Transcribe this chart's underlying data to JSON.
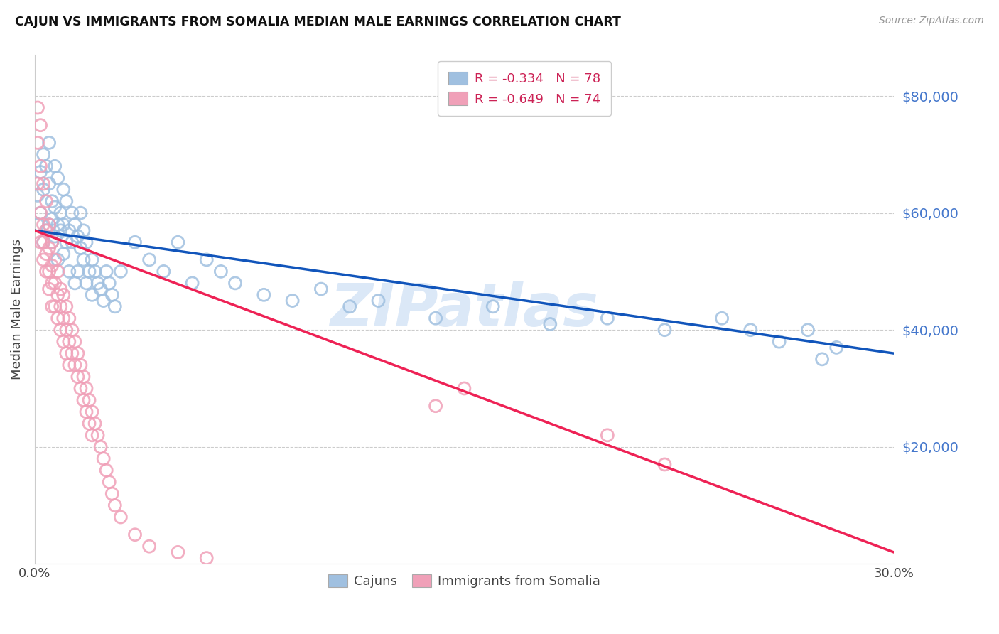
{
  "title": "CAJUN VS IMMIGRANTS FROM SOMALIA MEDIAN MALE EARNINGS CORRELATION CHART",
  "source": "Source: ZipAtlas.com",
  "ylabel": "Median Male Earnings",
  "ytick_labels": [
    "$20,000",
    "$40,000",
    "$60,000",
    "$80,000"
  ],
  "ytick_values": [
    20000,
    40000,
    60000,
    80000
  ],
  "ymin": 0,
  "ymax": 87000,
  "xmin": 0.0,
  "xmax": 0.3,
  "cajun_color": "#a0c0e0",
  "somalia_color": "#f0a0b8",
  "cajun_line_color": "#1155bb",
  "somalia_line_color": "#ee2255",
  "right_axis_color": "#4477cc",
  "watermark_text": "ZIPatlas",
  "watermark_color": "#b0ccee",
  "cajun_R": -0.334,
  "cajun_N": 78,
  "somalia_R": -0.649,
  "somalia_N": 74,
  "cajun_x": [
    0.001,
    0.001,
    0.002,
    0.002,
    0.003,
    0.003,
    0.003,
    0.004,
    0.004,
    0.005,
    0.005,
    0.005,
    0.006,
    0.006,
    0.006,
    0.007,
    0.007,
    0.007,
    0.008,
    0.008,
    0.008,
    0.009,
    0.009,
    0.01,
    0.01,
    0.01,
    0.011,
    0.011,
    0.012,
    0.012,
    0.013,
    0.013,
    0.014,
    0.014,
    0.015,
    0.015,
    0.016,
    0.016,
    0.017,
    0.017,
    0.018,
    0.018,
    0.019,
    0.02,
    0.02,
    0.021,
    0.022,
    0.023,
    0.024,
    0.025,
    0.026,
    0.027,
    0.028,
    0.03,
    0.035,
    0.04,
    0.045,
    0.05,
    0.055,
    0.06,
    0.065,
    0.07,
    0.08,
    0.09,
    0.1,
    0.11,
    0.12,
    0.14,
    0.16,
    0.18,
    0.2,
    0.22,
    0.24,
    0.25,
    0.26,
    0.27,
    0.275,
    0.28
  ],
  "cajun_y": [
    63000,
    58000,
    67000,
    60000,
    70000,
    64000,
    55000,
    68000,
    57000,
    65000,
    72000,
    58000,
    62000,
    55000,
    59000,
    68000,
    56000,
    61000,
    66000,
    58000,
    52000,
    57000,
    60000,
    64000,
    53000,
    58000,
    62000,
    55000,
    57000,
    50000,
    55000,
    60000,
    58000,
    48000,
    56000,
    50000,
    60000,
    54000,
    52000,
    57000,
    55000,
    48000,
    50000,
    52000,
    46000,
    50000,
    48000,
    47000,
    45000,
    50000,
    48000,
    46000,
    44000,
    50000,
    55000,
    52000,
    50000,
    55000,
    48000,
    52000,
    50000,
    48000,
    46000,
    45000,
    47000,
    44000,
    45000,
    42000,
    44000,
    41000,
    42000,
    40000,
    42000,
    40000,
    38000,
    40000,
    35000,
    37000
  ],
  "somalia_x": [
    0.001,
    0.001,
    0.001,
    0.002,
    0.002,
    0.002,
    0.002,
    0.003,
    0.003,
    0.003,
    0.003,
    0.004,
    0.004,
    0.004,
    0.004,
    0.005,
    0.005,
    0.005,
    0.005,
    0.006,
    0.006,
    0.006,
    0.006,
    0.007,
    0.007,
    0.007,
    0.008,
    0.008,
    0.008,
    0.009,
    0.009,
    0.009,
    0.01,
    0.01,
    0.01,
    0.011,
    0.011,
    0.011,
    0.012,
    0.012,
    0.012,
    0.013,
    0.013,
    0.014,
    0.014,
    0.015,
    0.015,
    0.016,
    0.016,
    0.017,
    0.017,
    0.018,
    0.018,
    0.019,
    0.019,
    0.02,
    0.02,
    0.021,
    0.022,
    0.023,
    0.024,
    0.025,
    0.026,
    0.027,
    0.028,
    0.03,
    0.035,
    0.04,
    0.05,
    0.06,
    0.14,
    0.15,
    0.2,
    0.22
  ],
  "somalia_y": [
    78000,
    72000,
    65000,
    75000,
    68000,
    60000,
    55000,
    65000,
    58000,
    55000,
    52000,
    62000,
    57000,
    53000,
    50000,
    58000,
    54000,
    50000,
    47000,
    55000,
    51000,
    48000,
    44000,
    52000,
    48000,
    44000,
    50000,
    46000,
    42000,
    47000,
    44000,
    40000,
    46000,
    42000,
    38000,
    44000,
    40000,
    36000,
    42000,
    38000,
    34000,
    40000,
    36000,
    38000,
    34000,
    36000,
    32000,
    34000,
    30000,
    32000,
    28000,
    30000,
    26000,
    28000,
    24000,
    26000,
    22000,
    24000,
    22000,
    20000,
    18000,
    16000,
    14000,
    12000,
    10000,
    8000,
    5000,
    3000,
    2000,
    1000,
    27000,
    30000,
    22000,
    17000
  ]
}
